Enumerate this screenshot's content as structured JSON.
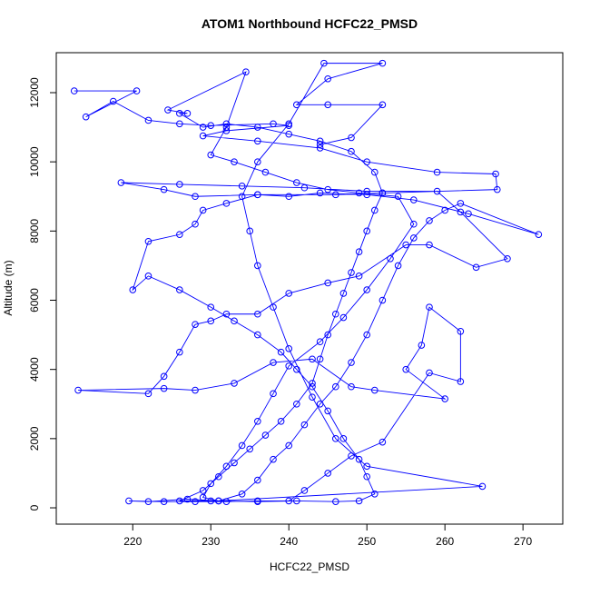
{
  "chart_data": {
    "type": "line",
    "markers": true,
    "title": "ATOM1 Northbound HCFC22_PMSD",
    "x_label": "HCFC22_PMSD",
    "y_label": "Altitude (m)",
    "color": "#0000ff",
    "xlim": [
      210.2,
      275.1
    ],
    "ylim": [
      -472,
      13155
    ],
    "xticks": [
      220,
      230,
      240,
      250,
      260,
      270
    ],
    "yticks": [
      0,
      2000,
      4000,
      6000,
      8000,
      10000,
      12000
    ],
    "x": [
      212.5,
      220.5,
      214,
      217.5,
      222,
      226,
      230,
      238,
      240,
      232,
      229,
      236,
      244,
      250,
      259,
      266.5,
      266.7,
      252,
      246,
      236,
      228,
      224,
      218.5,
      226,
      234,
      242,
      250,
      259,
      262,
      268,
      264,
      258,
      255,
      249,
      245,
      240,
      236,
      232,
      230,
      228,
      226,
      224,
      222,
      213,
      224,
      228,
      233,
      238,
      243,
      248,
      251,
      260,
      255,
      257,
      258,
      262,
      262,
      258,
      252,
      248,
      245,
      242,
      240,
      236,
      232,
      228,
      224,
      219.5,
      222,
      227,
      231,
      234,
      236,
      238,
      240,
      242,
      244,
      246,
      248,
      250,
      252,
      254,
      256,
      258,
      260,
      262,
      272,
      263,
      256,
      250,
      244,
      240,
      236,
      232,
      229,
      228,
      226,
      222,
      220,
      222,
      226,
      230,
      233,
      236,
      239,
      241,
      243,
      245,
      247,
      249,
      250,
      251,
      249,
      246,
      241,
      236,
      230,
      226,
      229,
      231,
      233,
      235,
      237,
      239,
      241,
      243,
      244,
      245,
      246,
      247,
      248,
      249,
      250,
      251,
      252,
      251,
      248,
      244,
      240,
      236,
      232,
      229,
      226,
      227,
      224.5,
      234.5,
      232,
      230,
      233,
      237,
      241,
      245,
      249,
      254,
      256,
      253,
      250,
      247,
      244,
      240,
      238,
      236,
      234,
      232,
      230,
      229,
      231,
      264.8,
      250,
      246,
      243,
      240,
      238,
      236,
      235,
      234,
      236,
      240,
      244.5,
      252,
      245,
      241,
      245,
      252,
      248,
      244
    ],
    "values": [
      12050,
      12050,
      11300,
      11750,
      11200,
      11100,
      11050,
      11100,
      11050,
      10900,
      10750,
      10600,
      10400,
      10000,
      9700,
      9650,
      9200,
      9100,
      9050,
      9050,
      9000,
      9200,
      9400,
      9350,
      9300,
      9250,
      9150,
      9150,
      8550,
      7200,
      6950,
      7600,
      7600,
      6700,
      6500,
      6200,
      5600,
      5600,
      5400,
      5300,
      4500,
      3800,
      3300,
      3400,
      3450,
      3400,
      3600,
      4200,
      4300,
      3500,
      3400,
      3150,
      4000,
      4700,
      5800,
      5100,
      3650,
      3900,
      1900,
      1500,
      1000,
      500,
      200,
      200,
      180,
      180,
      180,
      200,
      180,
      250,
      200,
      400,
      800,
      1400,
      1800,
      2400,
      3000,
      3500,
      4200,
      5000,
      6000,
      7000,
      7800,
      8300,
      8600,
      8800,
      7900,
      8500,
      8900,
      9050,
      9100,
      9000,
      9050,
      8800,
      8600,
      8200,
      7900,
      7700,
      6300,
      6700,
      6300,
      5800,
      5400,
      5000,
      4500,
      4000,
      3500,
      2800,
      2000,
      1400,
      900,
      400,
      200,
      180,
      200,
      180,
      200,
      200,
      500,
      900,
      1300,
      1700,
      2100,
      2500,
      3000,
      3600,
      4300,
      5000,
      5600,
      6200,
      6800,
      7400,
      8000,
      8600,
      9100,
      9700,
      10300,
      10600,
      10800,
      11000,
      11100,
      11000,
      11400,
      11400,
      11500,
      12600,
      11000,
      10200,
      10000,
      9700,
      9400,
      9200,
      9100,
      9000,
      8200,
      7200,
      6300,
      5500,
      4800,
      4100,
      3300,
      2500,
      1800,
      1200,
      700,
      300,
      200,
      620,
      1200,
      2000,
      3200,
      4600,
      5800,
      7000,
      8000,
      9000,
      10000,
      11100,
      12850,
      12850,
      12400,
      11650,
      11650,
      11650,
      10700,
      10500
    ]
  }
}
